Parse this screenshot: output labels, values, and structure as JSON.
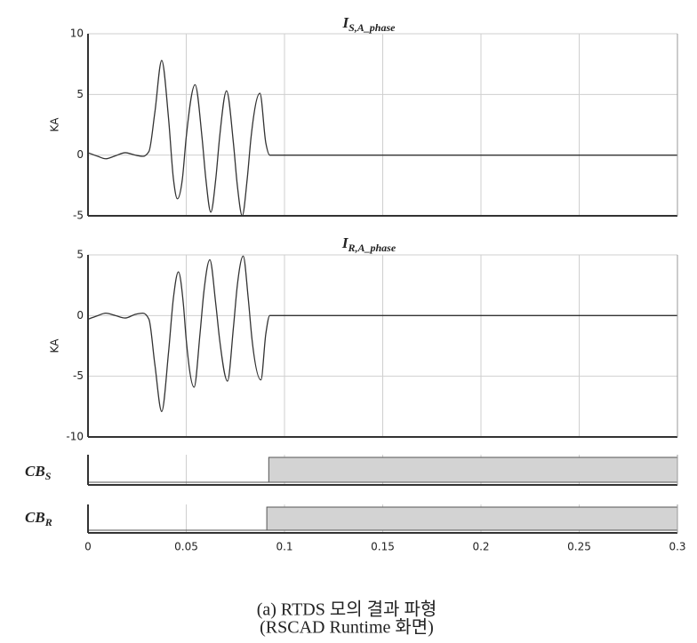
{
  "chart_data": [
    {
      "type": "line",
      "title": "I",
      "title_subscript": "S,A_phase",
      "ylabel": "KA",
      "color": "#333333",
      "grid": true,
      "x": [
        0,
        0.005,
        0.009,
        0.014,
        0.019,
        0.024,
        0.028,
        0.031,
        0.034,
        0.0375,
        0.041,
        0.0435,
        0.0455,
        0.048,
        0.05,
        0.0545,
        0.058,
        0.06,
        0.0625,
        0.065,
        0.067,
        0.0705,
        0.074,
        0.076,
        0.0785,
        0.081,
        0.083,
        0.0875,
        0.0905,
        0.0925,
        0.3
      ],
      "values": [
        0.2,
        -0.1,
        -0.3,
        -0.05,
        0.2,
        0.0,
        -0.1,
        0.3,
        3.5,
        7.8,
        3.0,
        -2.0,
        -3.6,
        -2.0,
        1.5,
        5.8,
        1.5,
        -2.0,
        -4.7,
        -2.0,
        1.5,
        5.3,
        1.0,
        -2.5,
        -5.0,
        -2.0,
        1.5,
        5.1,
        1.0,
        0,
        0
      ],
      "xlim": [
        0,
        0.3
      ],
      "xticks": [
        0,
        0.05,
        0.1,
        0.15,
        0.2,
        0.25,
        0.3
      ],
      "ylim": [
        -5,
        10
      ],
      "yticks": [
        10,
        5,
        0,
        -5
      ]
    },
    {
      "type": "line",
      "title": "I",
      "title_subscript": "R,A_phase",
      "ylabel": "KA",
      "color": "#333333",
      "grid": true,
      "x": [
        0,
        0.005,
        0.009,
        0.014,
        0.019,
        0.024,
        0.028,
        0.031,
        0.034,
        0.0375,
        0.041,
        0.0435,
        0.046,
        0.0485,
        0.05,
        0.054,
        0.057,
        0.059,
        0.062,
        0.065,
        0.067,
        0.071,
        0.074,
        0.076,
        0.079,
        0.0815,
        0.0835,
        0.088,
        0.0905,
        0.0925,
        0.3
      ],
      "values": [
        -0.3,
        0.0,
        0.2,
        0.0,
        -0.2,
        0.1,
        0.2,
        -0.3,
        -4.0,
        -7.9,
        -3.0,
        1.5,
        3.6,
        1.0,
        -2.0,
        -5.9,
        -1.5,
        2.0,
        4.6,
        1.0,
        -2.0,
        -5.4,
        -1.0,
        2.5,
        4.9,
        1.5,
        -2.0,
        -5.3,
        -1.5,
        0,
        0
      ],
      "xlim": [
        0,
        0.3
      ],
      "xticks": [
        0,
        0.05,
        0.1,
        0.15,
        0.2,
        0.25,
        0.3
      ],
      "ylim": [
        -10,
        5
      ],
      "yticks": [
        5,
        0,
        -5,
        -10
      ]
    },
    {
      "type": "step",
      "title": "CB",
      "title_subscript": "S",
      "color": "#d3d3d3",
      "grid": true,
      "x": [
        0,
        0.092,
        0.092,
        0.3
      ],
      "values": [
        0,
        0,
        1,
        1
      ],
      "xlim": [
        0,
        0.3
      ],
      "xticks": [
        0,
        0.05,
        0.1,
        0.15,
        0.2,
        0.25,
        0.3
      ],
      "ylim": [
        0,
        1
      ]
    },
    {
      "type": "step",
      "title": "CB",
      "title_subscript": "R",
      "color": "#d3d3d3",
      "grid": true,
      "x": [
        0,
        0.091,
        0.091,
        0.3
      ],
      "values": [
        0,
        0,
        1,
        1
      ],
      "xlim": [
        0,
        0.3
      ],
      "xticks": [
        0,
        0.05,
        0.1,
        0.15,
        0.2,
        0.25,
        0.3
      ],
      "ylim": [
        0,
        1
      ]
    }
  ],
  "caption": [
    "(a) RTDS 모의 결과 파형",
    "(RSCAD Runtime 화면)"
  ]
}
